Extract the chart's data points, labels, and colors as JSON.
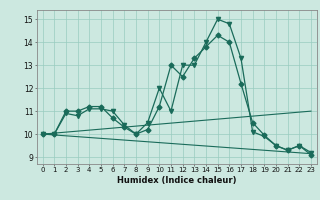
{
  "title": "",
  "xlabel": "Humidex (Indice chaleur)",
  "background_color": "#cce8e0",
  "grid_color": "#99ccc0",
  "line_color": "#1a6b5a",
  "xlim": [
    -0.5,
    23.5
  ],
  "ylim": [
    8.7,
    15.4
  ],
  "yticks": [
    9,
    10,
    11,
    12,
    13,
    14,
    15
  ],
  "xticks": [
    0,
    1,
    2,
    3,
    4,
    5,
    6,
    7,
    8,
    9,
    10,
    11,
    12,
    13,
    14,
    15,
    16,
    17,
    18,
    19,
    20,
    21,
    22,
    23
  ],
  "series1_x": [
    0,
    1,
    2,
    3,
    4,
    5,
    6,
    7,
    8,
    9,
    10,
    11,
    12,
    13,
    14,
    15,
    16,
    17,
    18,
    19,
    20,
    21,
    22,
    23
  ],
  "series1_y": [
    10.0,
    10.0,
    10.9,
    10.8,
    11.1,
    11.1,
    11.0,
    10.4,
    10.0,
    10.5,
    12.0,
    11.0,
    13.0,
    13.0,
    14.0,
    15.0,
    14.8,
    13.3,
    10.1,
    9.9,
    9.5,
    9.3,
    9.5,
    9.2
  ],
  "series2_x": [
    0,
    1,
    2,
    3,
    4,
    5,
    6,
    7,
    8,
    9,
    10,
    11,
    12,
    13,
    14,
    15,
    16,
    17,
    18,
    19,
    20,
    21,
    22,
    23
  ],
  "series2_y": [
    10.0,
    10.0,
    11.0,
    11.0,
    11.2,
    11.2,
    10.7,
    10.3,
    10.0,
    10.2,
    11.2,
    13.0,
    12.5,
    13.3,
    13.8,
    14.3,
    14.0,
    12.2,
    10.5,
    9.95,
    9.5,
    9.3,
    9.5,
    9.1
  ],
  "line3_x": [
    0,
    23
  ],
  "line3_y": [
    10.0,
    11.0
  ],
  "line4_x": [
    0,
    23
  ],
  "line4_y": [
    10.0,
    9.15
  ]
}
